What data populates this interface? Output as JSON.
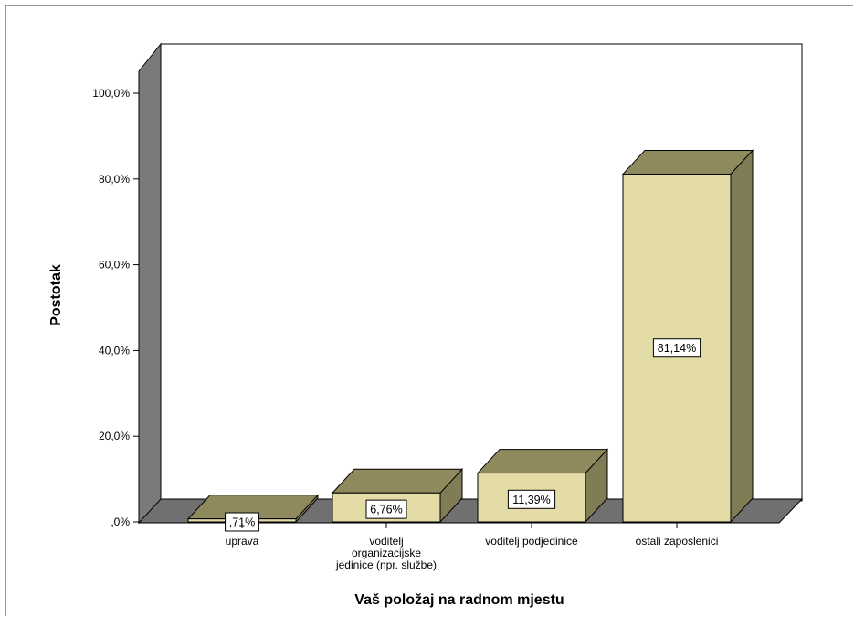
{
  "chart_data": {
    "type": "bar",
    "title": "",
    "xlabel": "Vaš položaj na radnom mjestu",
    "ylabel": "Postotak",
    "ylim": [
      0,
      100
    ],
    "y_ticks": [
      {
        "value": 0,
        "label": ",0%"
      },
      {
        "value": 20,
        "label": "20,0%"
      },
      {
        "value": 40,
        "label": "40,0%"
      },
      {
        "value": 60,
        "label": "60,0%"
      },
      {
        "value": 80,
        "label": "80,0%"
      },
      {
        "value": 100,
        "label": "100,0%"
      }
    ],
    "categories": [
      [
        "uprava"
      ],
      [
        "voditelj",
        "organizacijske",
        "jedinice (npr. službe)"
      ],
      [
        "voditelj podjedinice"
      ],
      [
        "ostali zaposlenici"
      ]
    ],
    "values": [
      0.71,
      6.76,
      11.39,
      81.14
    ],
    "data_labels": [
      ",71%",
      "6,76%",
      "11,39%",
      "81,14%"
    ],
    "grid": false,
    "style": "3d",
    "colors": {
      "bar_front": "#e3dca6",
      "bar_top": "#8e8a5e",
      "bar_side": "#807c55",
      "wall": "#7a7a7a",
      "floor": "#707070"
    }
  }
}
